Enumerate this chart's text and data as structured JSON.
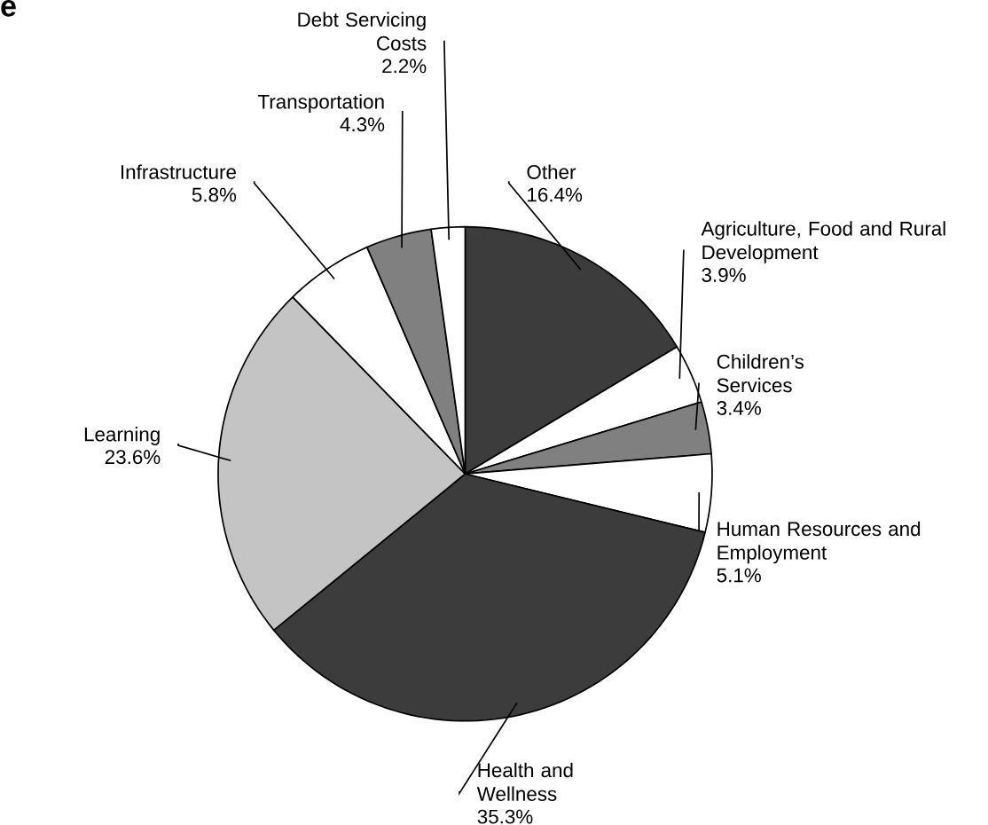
{
  "chart_data": {
    "type": "pie",
    "title": "e",
    "categories": [
      "Other",
      "Agriculture, Food and Rural Development",
      "Children’s Services",
      "Human Resources and Employment",
      "Health and Wellness",
      "Learning",
      "Infrastructure",
      "Transportation",
      "Debt Servicing Costs"
    ],
    "values": [
      16.4,
      3.9,
      3.4,
      5.1,
      35.3,
      23.6,
      5.8,
      4.3,
      2.2
    ],
    "value_labels": [
      "16.4%",
      "3.9%",
      "3.4%",
      "5.1%",
      "35.3%",
      "23.6%",
      "5.8%",
      "4.3%",
      "2.2%"
    ],
    "colors": [
      "#3c3c3c",
      "#ffffff",
      "#808080",
      "#ffffff",
      "#3c3c3c",
      "#c4c4c4",
      "#ffffff",
      "#808080",
      "#ffffff"
    ]
  }
}
